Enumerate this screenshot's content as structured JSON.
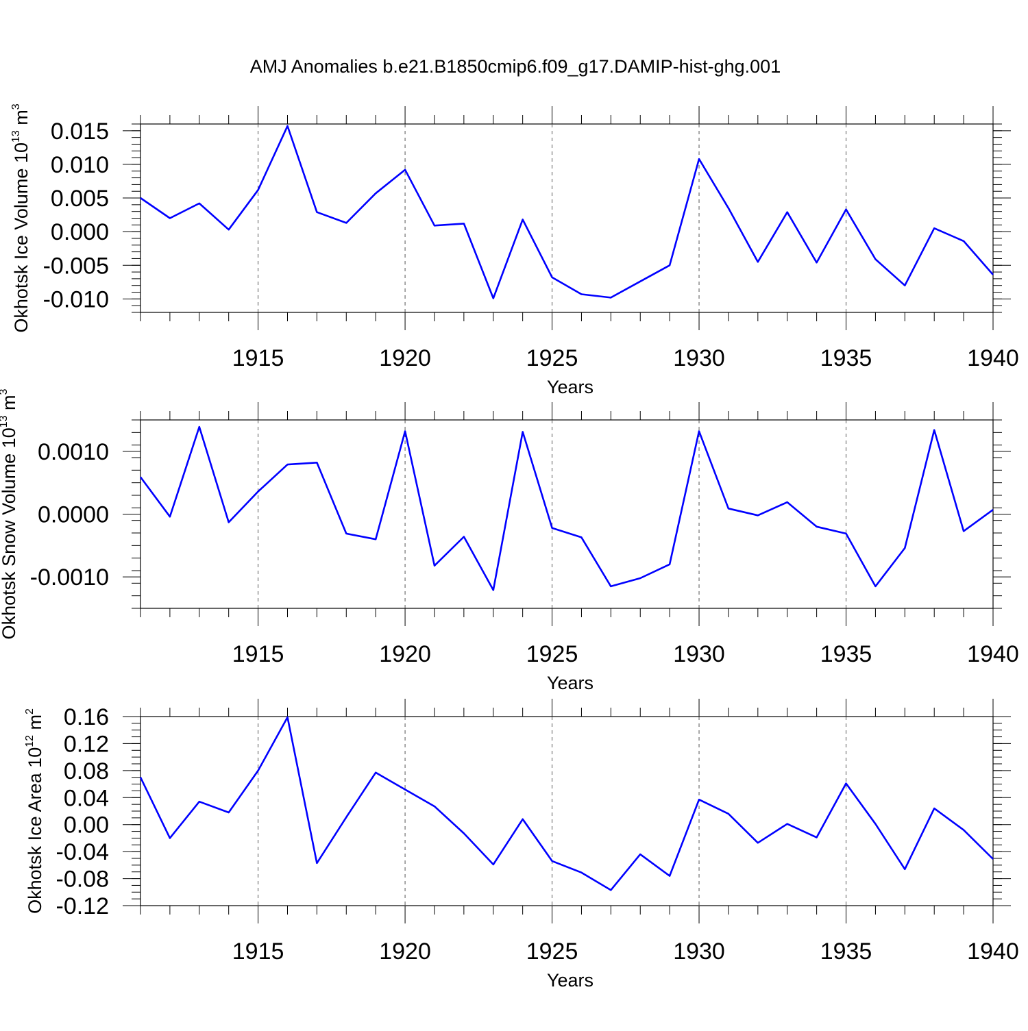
{
  "chart_data": {
    "type": "line",
    "title": "AMJ Anomalies b.e21.B1850cmip6.f09_g17.DAMIP-hist-ghg.001",
    "line_color": "#0000ff",
    "x": [
      1911,
      1912,
      1913,
      1914,
      1915,
      1916,
      1917,
      1918,
      1919,
      1920,
      1921,
      1922,
      1923,
      1924,
      1925,
      1926,
      1927,
      1928,
      1929,
      1930,
      1931,
      1932,
      1933,
      1934,
      1935,
      1936,
      1937,
      1938,
      1939,
      1940
    ],
    "xlim": [
      1911,
      1940
    ],
    "xticks": [
      1915,
      1920,
      1925,
      1930,
      1935,
      1940
    ],
    "xlabel": "Years",
    "panels": [
      {
        "name": "ice-volume",
        "ylabel_main": "Okhotsk Ice Volume 10",
        "ylabel_exp": "13",
        "ylabel_unit": " m",
        "ylabel_unit_exp": "3",
        "ylim": [
          -0.012,
          0.016
        ],
        "yticks": [
          -0.01,
          -0.005,
          0.0,
          0.005,
          0.01,
          0.015
        ],
        "ytick_labels": [
          "-0.010",
          "-0.005",
          "0.000",
          "0.005",
          "0.010",
          "0.015"
        ],
        "minor_step": 0.001,
        "values": [
          0.005,
          0.002,
          0.0042,
          0.0003,
          0.0062,
          0.0157,
          0.0029,
          0.0013,
          0.0057,
          0.0092,
          0.0009,
          0.0012,
          -0.0099,
          0.0018,
          -0.0068,
          -0.0093,
          -0.0098,
          -0.0074,
          -0.005,
          0.0108,
          0.0035,
          -0.0045,
          0.0029,
          -0.0046,
          0.0033,
          -0.0041,
          -0.008,
          0.0005,
          -0.0014,
          -0.0064
        ]
      },
      {
        "name": "snow-volume",
        "ylabel_main": "Okhotsk Snow Volume 10",
        "ylabel_exp": "13",
        "ylabel_unit": " m",
        "ylabel_unit_exp": "3",
        "ylim": [
          -0.0015,
          0.0015
        ],
        "yticks": [
          -0.001,
          0.0,
          0.001
        ],
        "ytick_labels": [
          "-0.0010",
          "0.0000",
          "0.0010"
        ],
        "minor_step": 0.0002,
        "values": [
          0.00059,
          -4e-05,
          0.00139,
          -0.00013,
          0.00036,
          0.00079,
          0.00082,
          -0.00031,
          -0.0004,
          0.00132,
          -0.00082,
          -0.00036,
          -0.00121,
          0.00131,
          -0.00022,
          -0.00037,
          -0.00115,
          -0.00102,
          -0.0008,
          0.00132,
          9e-05,
          -2e-05,
          0.00019,
          -0.0002,
          -0.00031,
          -0.00115,
          -0.00054,
          0.00134,
          -0.00027,
          7e-05
        ]
      },
      {
        "name": "ice-area",
        "ylabel_main": "Okhotsk Ice Area 10",
        "ylabel_exp": "12",
        "ylabel_unit": " m",
        "ylabel_unit_exp": "2",
        "ylim": [
          -0.12,
          0.16
        ],
        "yticks": [
          -0.12,
          -0.08,
          -0.04,
          0.0,
          0.04,
          0.08,
          0.12,
          0.16
        ],
        "ytick_labels": [
          "-0.12",
          "-0.08",
          "-0.04",
          "0.00",
          "0.04",
          "0.08",
          "0.12",
          "0.16"
        ],
        "minor_step": 0.01,
        "values": [
          0.07,
          -0.02,
          0.034,
          0.018,
          0.08,
          0.159,
          -0.057,
          0.011,
          0.077,
          0.052,
          0.027,
          -0.013,
          -0.059,
          0.008,
          -0.054,
          -0.071,
          -0.097,
          -0.044,
          -0.076,
          0.037,
          0.016,
          -0.027,
          0.001,
          -0.019,
          0.061,
          0.001,
          -0.066,
          0.024,
          -0.008,
          -0.051
        ]
      }
    ]
  }
}
